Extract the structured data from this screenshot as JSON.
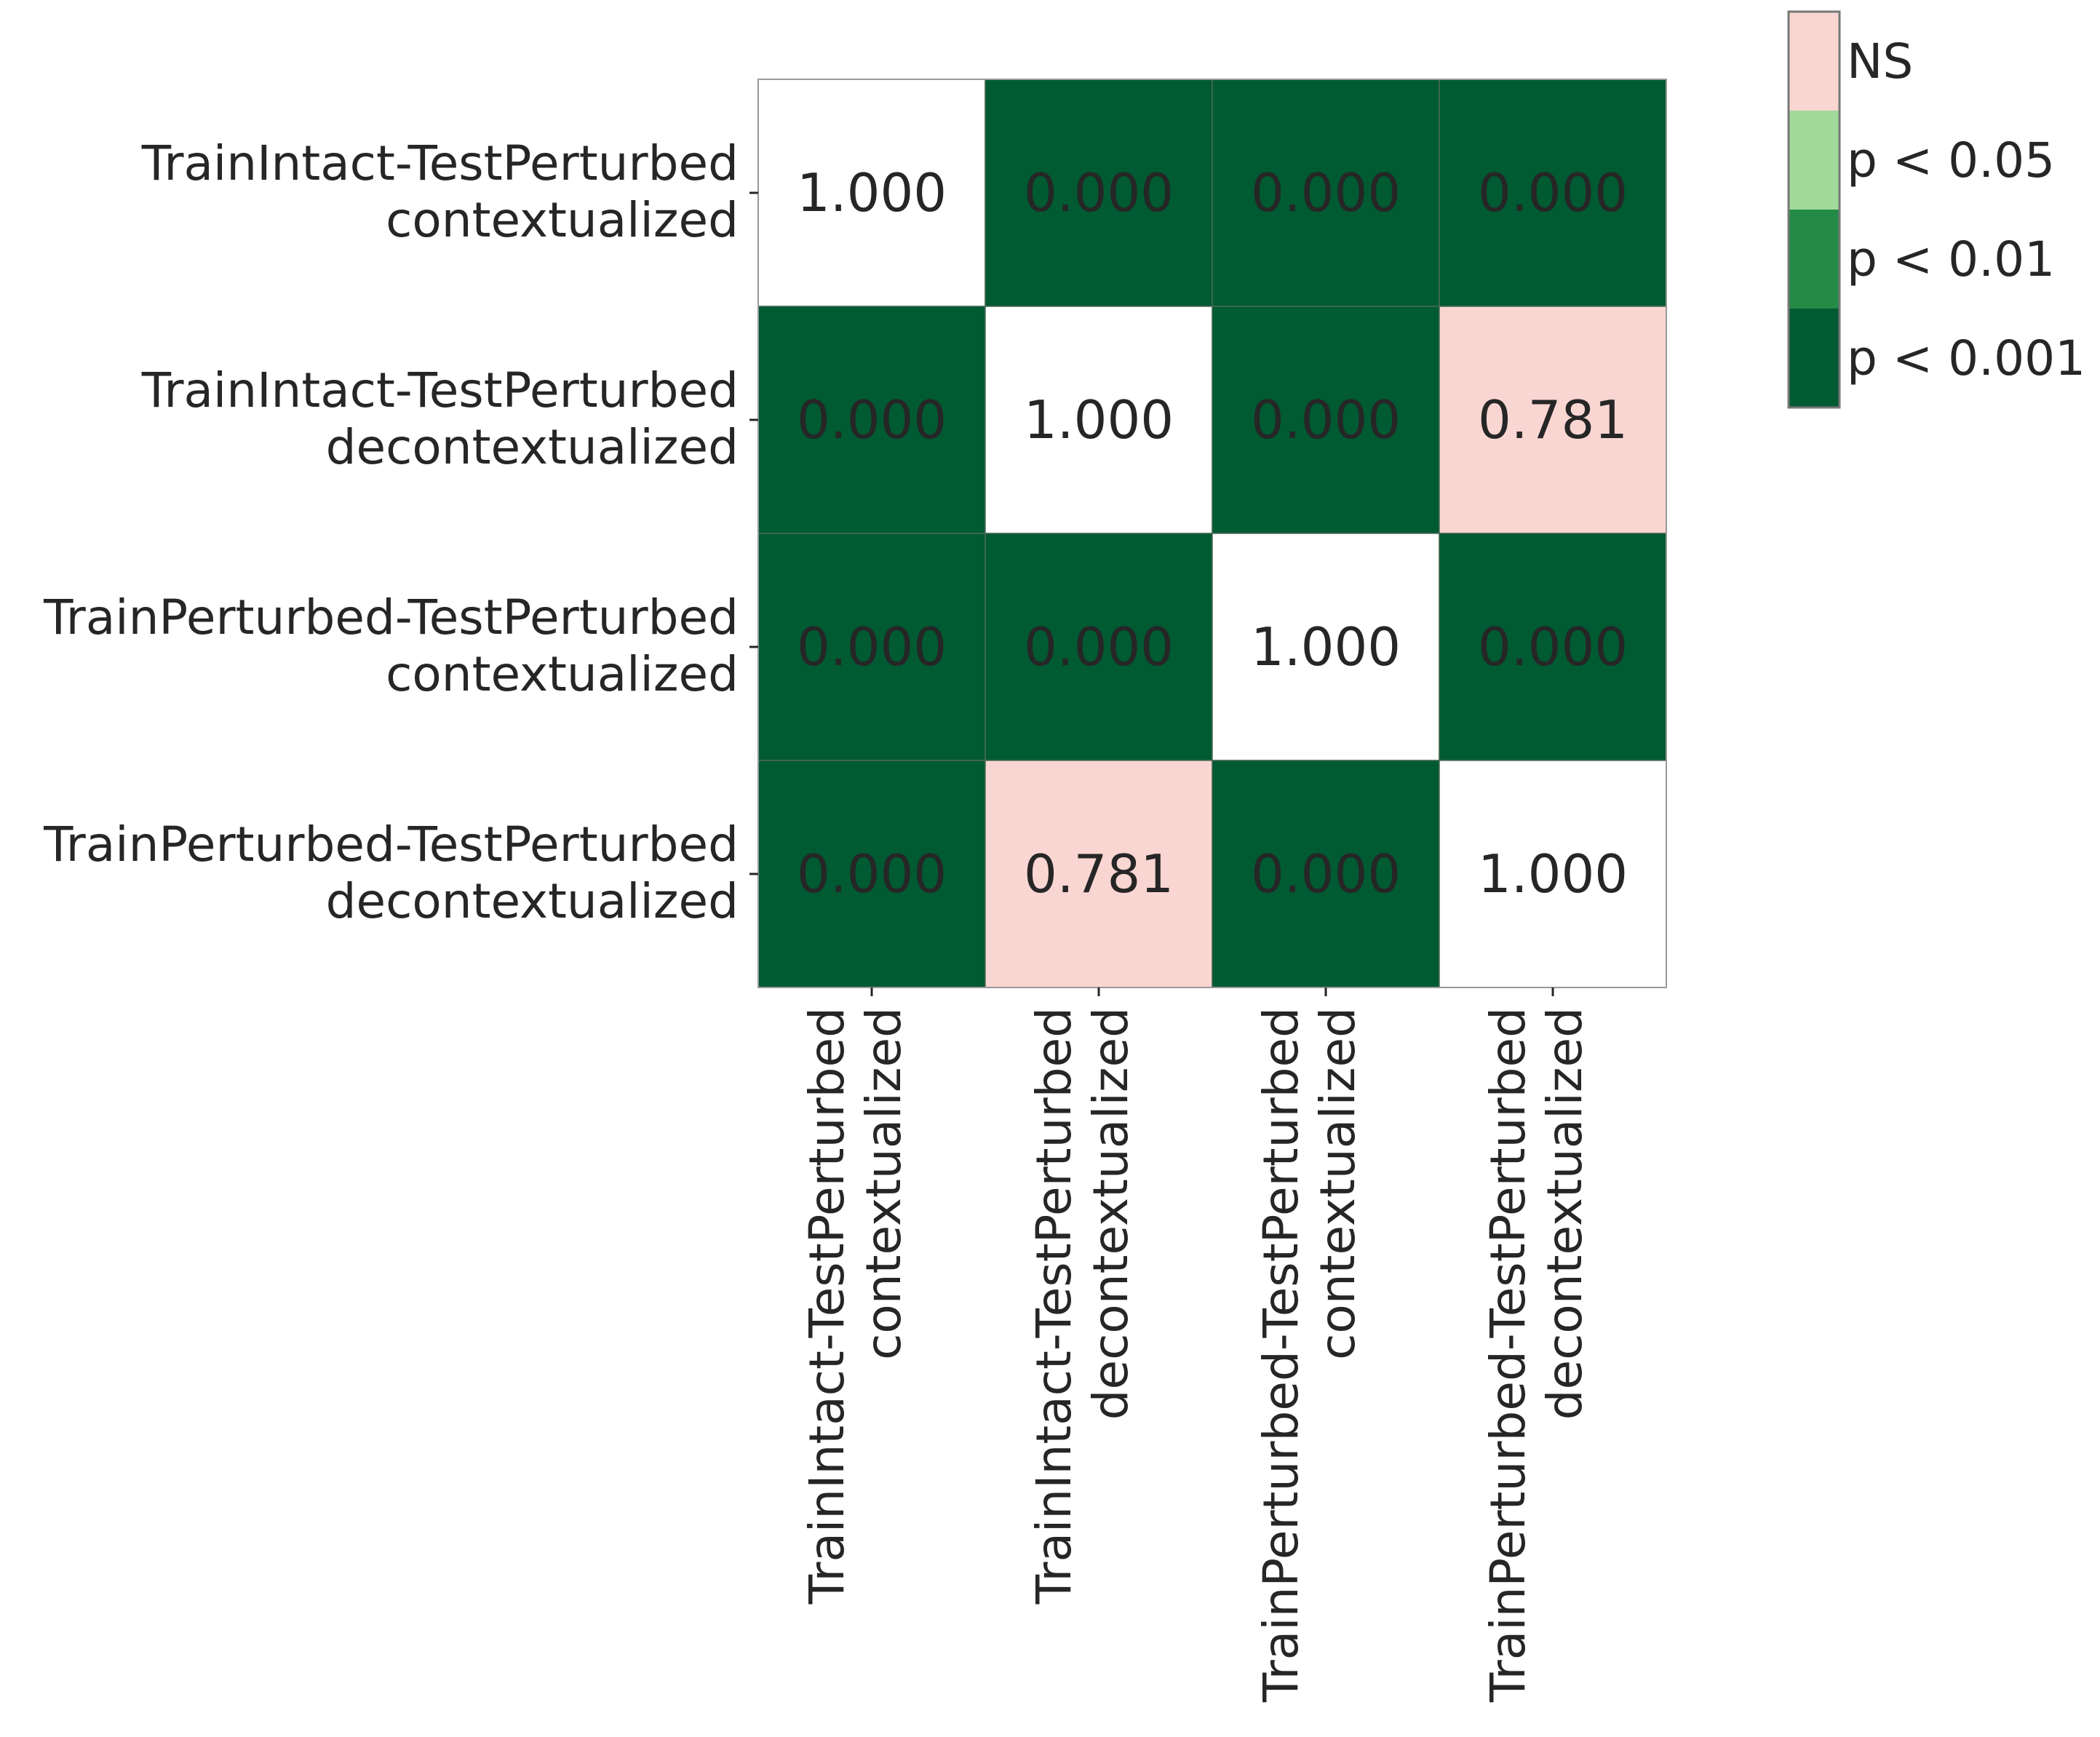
{
  "chart_data": {
    "type": "heatmap",
    "title": "",
    "xlabel": "",
    "ylabel": "",
    "row_labels": [
      [
        "TrainIntact-TestPerturbed",
        "contextualized"
      ],
      [
        "TrainIntact-TestPerturbed",
        "decontextualized"
      ],
      [
        "TrainPerturbed-TestPerturbed",
        "contextualized"
      ],
      [
        "TrainPerturbed-TestPerturbed",
        "decontextualized"
      ]
    ],
    "col_labels": [
      [
        "TrainIntact-TestPerturbed",
        "contextualized"
      ],
      [
        "TrainIntact-TestPerturbed",
        "decontextualized"
      ],
      [
        "TrainPerturbed-TestPerturbed",
        "contextualized"
      ],
      [
        "TrainPerturbed-TestPerturbed",
        "decontextualized"
      ]
    ],
    "values": [
      [
        1.0,
        0.0,
        0.0,
        0.0
      ],
      [
        0.0,
        1.0,
        0.0,
        0.781
      ],
      [
        0.0,
        0.0,
        1.0,
        0.0
      ],
      [
        0.0,
        0.781,
        0.0,
        1.0
      ]
    ],
    "cell_text": [
      [
        "1.000",
        "0.000",
        "0.000",
        "0.000"
      ],
      [
        "0.000",
        "1.000",
        "0.000",
        "0.781"
      ],
      [
        "0.000",
        "0.000",
        "1.000",
        "0.000"
      ],
      [
        "0.000",
        "0.781",
        "0.000",
        "1.000"
      ]
    ],
    "diagonal_color": "#ffffff",
    "legend": {
      "placement": "top-right",
      "entries": [
        {
          "label": "NS",
          "color": "#fad6d3"
        },
        {
          "label": "p < 0.05",
          "color": "#a1d99b"
        },
        {
          "label": "p < 0.01",
          "color": "#238b45"
        },
        {
          "label": "p < 0.001",
          "color": "#005a32"
        }
      ]
    }
  }
}
